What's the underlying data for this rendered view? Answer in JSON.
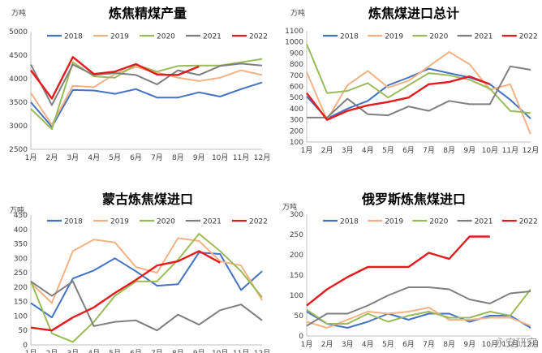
{
  "month_labels": [
    "1月",
    "2月",
    "3月",
    "4月",
    "5月",
    "6月",
    "7月",
    "8月",
    "9月",
    "10月",
    "11月",
    "12月"
  ],
  "series_meta": [
    {
      "name": "2018",
      "color": "#4472C4"
    },
    {
      "name": "2019",
      "color": "#F4B183"
    },
    {
      "name": "2020",
      "color": "#9BBB59"
    },
    {
      "name": "2021",
      "color": "#7F7F7F"
    },
    {
      "name": "2022",
      "color": "#E41A1C"
    }
  ],
  "watermark": "永安研究",
  "chart_data": [
    {
      "type": "line",
      "title": "炼焦精煤产量",
      "unit": "万吨",
      "ylim": [
        2500,
        5000
      ],
      "yticks": [
        2500,
        3000,
        3500,
        4000,
        4500,
        5000
      ],
      "categories": [
        "1月",
        "2月",
        "3月",
        "4月",
        "5月",
        "6月",
        "7月",
        "8月",
        "9月",
        "10月",
        "11月",
        "12月"
      ],
      "series": [
        {
          "name": "2018",
          "values": [
            3500,
            2980,
            3760,
            3750,
            3680,
            3780,
            3600,
            3600,
            3710,
            3620,
            3780,
            3920
          ]
        },
        {
          "name": "2019",
          "values": [
            3700,
            3020,
            3850,
            3820,
            4100,
            4250,
            4130,
            4020,
            3950,
            4020,
            4180,
            4080
          ]
        },
        {
          "name": "2020",
          "values": [
            3360,
            2930,
            4350,
            4050,
            4020,
            4300,
            4150,
            4270,
            4280,
            4280,
            4350,
            4420
          ]
        },
        {
          "name": "2021",
          "values": [
            4300,
            3440,
            4300,
            4080,
            4120,
            4080,
            3880,
            4180,
            4080,
            4270,
            4320,
            4280
          ]
        },
        {
          "name": "2022",
          "values": [
            4180,
            3580,
            4460,
            4100,
            4150,
            4310,
            4090,
            4080,
            4260,
            null,
            null,
            null
          ]
        }
      ]
    },
    {
      "type": "line",
      "title": "炼焦煤进口总计",
      "unit": "万吨",
      "ylim": [
        100,
        1100
      ],
      "yticks": [
        100,
        200,
        300,
        400,
        500,
        600,
        700,
        800,
        900,
        1000,
        1100
      ],
      "categories": [
        "1月",
        "2月",
        "3月",
        "4月",
        "5月",
        "6月",
        "7月",
        "8月",
        "9月",
        "10月",
        "11月",
        "12月"
      ],
      "series": [
        {
          "name": "2018",
          "values": [
            510,
            310,
            400,
            470,
            610,
            680,
            760,
            720,
            680,
            620,
            480,
            310
          ]
        },
        {
          "name": "2019",
          "values": [
            730,
            300,
            610,
            740,
            590,
            650,
            780,
            910,
            800,
            570,
            620,
            170
          ]
        },
        {
          "name": "2020",
          "values": [
            980,
            540,
            560,
            630,
            500,
            610,
            720,
            700,
            660,
            580,
            380,
            360
          ]
        },
        {
          "name": "2021",
          "values": [
            320,
            320,
            490,
            350,
            340,
            420,
            380,
            470,
            440,
            440,
            780,
            750
          ]
        },
        {
          "name": "2022",
          "values": [
            540,
            300,
            380,
            430,
            460,
            500,
            620,
            640,
            690,
            620,
            null,
            null
          ]
        }
      ]
    },
    {
      "type": "line",
      "title": "蒙古炼焦煤进口",
      "unit": "万吨",
      "ylim": [
        0,
        450
      ],
      "yticks": [
        0,
        50,
        100,
        150,
        200,
        250,
        300,
        350,
        400,
        450
      ],
      "categories": [
        "1月",
        "2月",
        "3月",
        "4月",
        "5月",
        "6月",
        "7月",
        "8月",
        "9月",
        "10月",
        "11月",
        "12月"
      ],
      "series": [
        {
          "name": "2018",
          "values": [
            145,
            95,
            230,
            258,
            300,
            255,
            205,
            210,
            320,
            315,
            190,
            255
          ]
        },
        {
          "name": "2019",
          "values": [
            215,
            145,
            325,
            365,
            355,
            270,
            250,
            370,
            360,
            290,
            275,
            155
          ]
        },
        {
          "name": "2020",
          "values": [
            220,
            40,
            10,
            80,
            170,
            220,
            220,
            295,
            385,
            325,
            255,
            165
          ]
        },
        {
          "name": "2021",
          "values": [
            220,
            170,
            220,
            65,
            80,
            85,
            50,
            105,
            70,
            120,
            140,
            85
          ]
        },
        {
          "name": "2022",
          "values": [
            60,
            50,
            95,
            130,
            180,
            225,
            275,
            290,
            325,
            285,
            null,
            null
          ]
        }
      ]
    },
    {
      "type": "line",
      "title": "俄罗斯炼焦煤进口",
      "unit": "万吨",
      "ylim": [
        0,
        300
      ],
      "yticks": [
        0,
        50,
        100,
        150,
        200,
        250,
        300
      ],
      "categories": [
        "1月",
        "2月",
        "3月",
        "4月",
        "5月",
        "6月",
        "7月",
        "8月",
        "9月",
        "10月",
        "11月",
        "12月"
      ],
      "series": [
        {
          "name": "2018",
          "values": [
            60,
            30,
            20,
            35,
            55,
            40,
            55,
            55,
            35,
            50,
            50,
            20
          ]
        },
        {
          "name": "2019",
          "values": [
            35,
            20,
            40,
            60,
            55,
            60,
            70,
            40,
            40,
            45,
            45,
            25
          ]
        },
        {
          "name": "2020",
          "values": [
            65,
            30,
            30,
            55,
            35,
            50,
            60,
            45,
            45,
            60,
            50,
            115
          ]
        },
        {
          "name": "2021",
          "values": [
            25,
            55,
            55,
            75,
            100,
            120,
            120,
            115,
            90,
            80,
            105,
            110
          ]
        },
        {
          "name": "2022",
          "values": [
            75,
            115,
            145,
            170,
            170,
            170,
            205,
            190,
            245,
            245,
            null,
            null
          ]
        }
      ]
    }
  ]
}
